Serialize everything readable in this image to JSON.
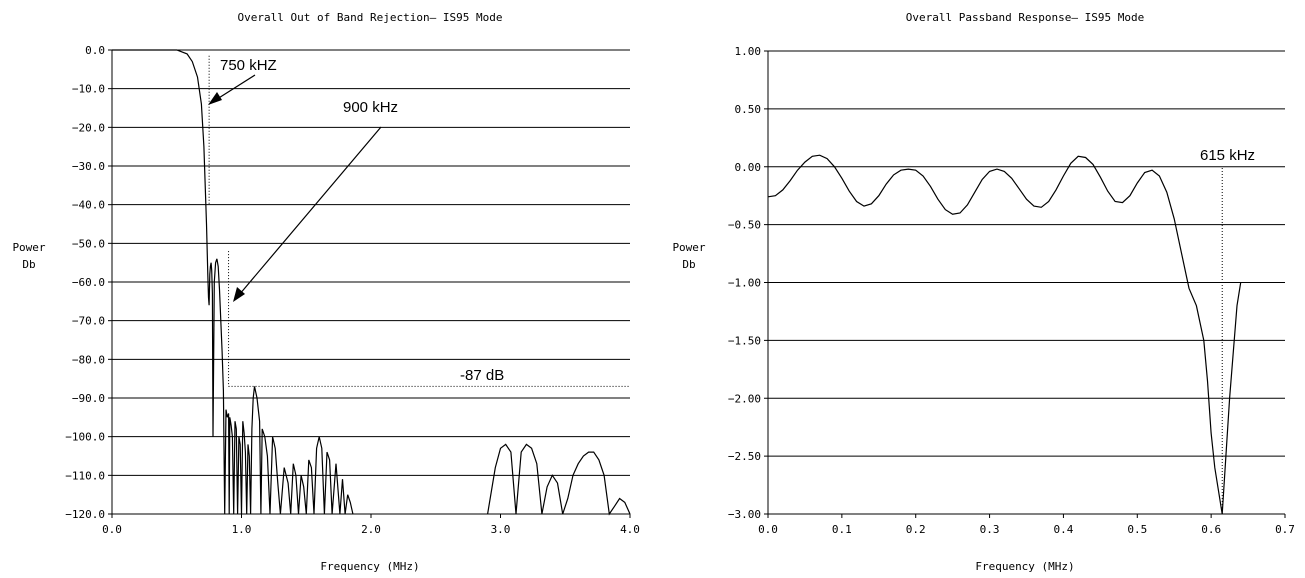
{
  "chart_data": [
    {
      "type": "line",
      "title": "Overall Out of Band Rejection— IS95 Mode",
      "xlabel": "Frequency (MHz)",
      "ylabel": [
        "Power",
        "Db"
      ],
      "xlim": [
        0,
        4
      ],
      "ylim": [
        -120,
        0
      ],
      "x_ticks": [
        "0.0",
        "1.0",
        "2.0",
        "3.0",
        "4.0"
      ],
      "x_tick_values": [
        0,
        1,
        2,
        3,
        4
      ],
      "y_ticks": [
        "0.0",
        "−10.0",
        "−20.0",
        "−30.0",
        "−40.0",
        "−50.0",
        "−60.0",
        "−70.0",
        "−80.0",
        "−90.0",
        "−100.0",
        "−110.0",
        "−120.0"
      ],
      "y_tick_values": [
        0,
        -10,
        -20,
        -30,
        -40,
        -50,
        -60,
        -70,
        -80,
        -90,
        -100,
        -110,
        -120
      ],
      "grid": "horizontal",
      "series": [
        {
          "x": [
            0.0,
            0.1,
            0.2,
            0.3,
            0.4,
            0.5,
            0.58,
            0.62,
            0.66,
            0.69,
            0.71,
            0.72,
            0.73,
            0.74,
            0.745,
            0.75,
            0.755,
            0.76,
            0.765,
            0.77,
            0.775,
            0.78,
            0.79,
            0.8,
            0.81,
            0.82,
            0.83,
            0.84,
            0.85,
            0.86,
            0.87,
            0.88,
            0.89,
            0.9,
            0.905,
            0.91,
            0.92,
            0.93,
            0.94,
            0.95,
            0.96,
            0.97,
            0.98,
            0.99,
            1.0,
            1.01,
            1.02,
            1.03,
            1.04,
            1.05,
            1.06,
            1.07,
            1.08,
            1.09,
            1.1,
            1.12,
            1.14,
            1.15,
            1.16,
            1.18,
            1.2,
            1.22,
            1.24,
            1.26,
            1.28,
            1.3,
            1.33,
            1.36,
            1.38,
            1.4,
            1.42,
            1.44,
            1.46,
            1.48,
            1.5,
            1.52,
            1.54,
            1.56,
            1.58,
            1.6,
            1.62,
            1.64,
            1.66,
            1.68,
            1.7,
            1.73,
            1.76,
            1.78,
            1.8,
            1.82,
            1.84,
            1.86
          ],
          "y": [
            0,
            0,
            0,
            0,
            0,
            0,
            -1,
            -3,
            -7,
            -14,
            -25,
            -35,
            -45,
            -58,
            -64,
            -66,
            -58,
            -56,
            -55,
            -57,
            -63,
            -100,
            -60,
            -55,
            -54,
            -56,
            -62,
            -70,
            -78,
            -88,
            -120,
            -93,
            -95,
            -94,
            -120,
            -95,
            -97,
            -100,
            -120,
            -96,
            -98,
            -120,
            -100,
            -102,
            -120,
            -96,
            -99,
            -104,
            -120,
            -102,
            -105,
            -120,
            -98,
            -90,
            -87,
            -90,
            -96,
            -120,
            -98,
            -100,
            -105,
            -120,
            -100,
            -103,
            -112,
            -120,
            -108,
            -112,
            -120,
            -107,
            -110,
            -120,
            -110,
            -113,
            -120,
            -106,
            -108,
            -120,
            -103,
            -100,
            -103,
            -120,
            -104,
            -106,
            -120,
            -107,
            -120,
            -111,
            -120,
            -115,
            -117,
            -120
          ]
        },
        {
          "x": [
            2.9,
            2.96,
            3.0,
            3.04,
            3.08,
            3.12,
            3.16,
            3.2,
            3.24,
            3.28,
            3.32,
            3.36,
            3.4,
            3.44,
            3.48,
            3.52,
            3.56,
            3.6,
            3.64,
            3.68,
            3.72,
            3.76,
            3.8,
            3.84,
            3.88,
            3.92,
            3.96,
            4.0
          ],
          "y": [
            -120,
            -108,
            -103,
            -102,
            -104,
            -120,
            -104,
            -102,
            -103,
            -107,
            -120,
            -113,
            -110,
            -112,
            -120,
            -116,
            -110,
            -107,
            -105,
            -104,
            -104,
            -106,
            -110,
            -120,
            -118,
            -116,
            -117,
            -120
          ]
        }
      ],
      "annotations": [
        {
          "text": "750 kHZ",
          "x": 0.75
        },
        {
          "text": "900 kHz",
          "x": 0.9
        },
        {
          "text": "-87 dB",
          "y": -87
        }
      ],
      "markers": {
        "vline_750": 0.75,
        "vline_900": 0.9,
        "hline_87": -87,
        "hline_87_from": 0.9
      }
    },
    {
      "type": "line",
      "title": "Overall Passband Response— IS95 Mode",
      "xlabel": "Frequency (MHz)",
      "ylabel": [
        "Power",
        "Db"
      ],
      "xlim": [
        0,
        0.7
      ],
      "ylim": [
        -3,
        1
      ],
      "x_ticks": [
        "0.0",
        "0.1",
        "0.2",
        "0.3",
        "0.4",
        "0.5",
        "0.6",
        "0.7"
      ],
      "x_tick_values": [
        0,
        0.1,
        0.2,
        0.3,
        0.4,
        0.5,
        0.6,
        0.7
      ],
      "y_ticks": [
        "1.00",
        "0.50",
        "0.00",
        "−0.50",
        "−1.00",
        "−1.50",
        "−2.00",
        "−2.50",
        "−3.00"
      ],
      "y_tick_values": [
        1,
        0.5,
        0,
        -0.5,
        -1,
        -1.5,
        -2,
        -2.5,
        -3
      ],
      "grid": "horizontal",
      "series": [
        {
          "x": [
            0.0,
            0.01,
            0.02,
            0.03,
            0.04,
            0.05,
            0.06,
            0.07,
            0.08,
            0.09,
            0.1,
            0.11,
            0.12,
            0.13,
            0.14,
            0.15,
            0.16,
            0.17,
            0.18,
            0.19,
            0.2,
            0.21,
            0.22,
            0.23,
            0.24,
            0.25,
            0.26,
            0.27,
            0.28,
            0.29,
            0.3,
            0.31,
            0.32,
            0.33,
            0.34,
            0.35,
            0.36,
            0.37,
            0.38,
            0.39,
            0.4,
            0.41,
            0.42,
            0.43,
            0.44,
            0.45,
            0.46,
            0.47,
            0.48,
            0.49,
            0.5,
            0.51,
            0.52,
            0.53,
            0.54,
            0.55,
            0.56,
            0.57,
            0.58,
            0.59,
            0.595,
            0.6,
            0.605,
            0.61,
            0.615,
            0.62,
            0.625,
            0.63,
            0.635,
            0.64
          ],
          "y": [
            -0.26,
            -0.25,
            -0.2,
            -0.12,
            -0.03,
            0.04,
            0.09,
            0.1,
            0.07,
            0.0,
            -0.1,
            -0.21,
            -0.3,
            -0.34,
            -0.32,
            -0.25,
            -0.15,
            -0.07,
            -0.03,
            -0.02,
            -0.03,
            -0.08,
            -0.17,
            -0.28,
            -0.37,
            -0.41,
            -0.4,
            -0.33,
            -0.22,
            -0.11,
            -0.04,
            -0.02,
            -0.04,
            -0.1,
            -0.19,
            -0.28,
            -0.34,
            -0.35,
            -0.3,
            -0.2,
            -0.08,
            0.03,
            0.09,
            0.08,
            0.02,
            -0.09,
            -0.21,
            -0.3,
            -0.31,
            -0.25,
            -0.14,
            -0.05,
            -0.03,
            -0.08,
            -0.22,
            -0.45,
            -0.75,
            -1.05,
            -1.2,
            -1.5,
            -1.85,
            -2.3,
            -2.6,
            -2.8,
            -3.0,
            -2.5,
            -2.0,
            -1.6,
            -1.2,
            -1.0
          ],
          "x_clean": true
        }
      ],
      "annotations": [
        {
          "text": "615 kHz",
          "x": 0.615
        }
      ],
      "markers": {
        "vline_615": 0.615
      }
    }
  ]
}
